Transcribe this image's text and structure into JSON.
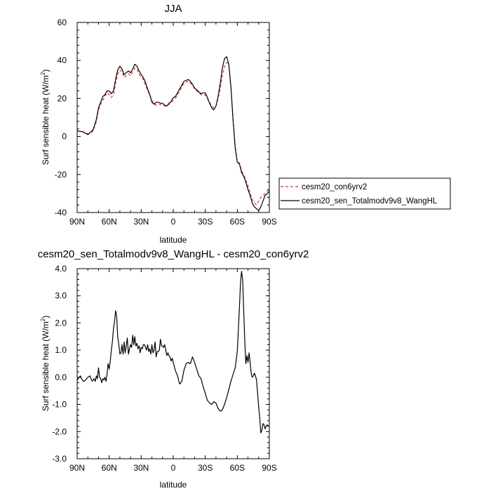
{
  "chart_data": [
    {
      "type": "line",
      "title": "JJA",
      "xlabel": "latitude",
      "ylabel": "Surf sensible heat (W/m",
      "ylabel_sup": "2",
      "ylabel_close": ")",
      "xlim": [
        90,
        -90
      ],
      "ylim": [
        -40,
        60
      ],
      "xticks": [
        90,
        60,
        30,
        0,
        -30,
        -60,
        -90
      ],
      "xtick_labels": [
        "90N",
        "60N",
        "30N",
        "0",
        "30S",
        "60S",
        "90S"
      ],
      "yticks": [
        -40,
        -20,
        0,
        20,
        40,
        60
      ],
      "ytick_labels": [
        "-40",
        "-20",
        "0",
        "20",
        "40",
        "60"
      ],
      "legend_position": "right",
      "x": [
        90,
        85,
        80,
        77,
        75,
        72,
        70,
        68,
        66,
        64,
        62,
        60,
        58,
        56,
        54,
        52,
        50,
        48,
        46,
        44,
        42,
        40,
        38,
        36,
        34,
        32,
        30,
        28,
        26,
        24,
        22,
        20,
        18,
        16,
        14,
        12,
        10,
        8,
        6,
        4,
        2,
        0,
        -2,
        -4,
        -6,
        -8,
        -10,
        -12,
        -14,
        -16,
        -18,
        -20,
        -22,
        -24,
        -26,
        -28,
        -30,
        -32,
        -34,
        -36,
        -38,
        -40,
        -42,
        -44,
        -46,
        -48,
        -50,
        -52,
        -54,
        -56,
        -58,
        -60,
        -62,
        -64,
        -66,
        -68,
        -70,
        -72,
        -74,
        -76,
        -78,
        -80,
        -82,
        -84,
        -86,
        -88,
        -90
      ],
      "series": [
        {
          "name": "cesm20_con6yrv2",
          "color": "#e8302f",
          "dash": "dashed",
          "values": [
            3,
            2.5,
            1.5,
            2,
            3,
            8,
            14,
            17,
            19,
            21,
            23,
            22,
            20.5,
            22,
            28,
            33,
            35,
            34,
            31,
            32,
            33,
            32,
            34,
            36,
            35.5,
            33,
            31,
            30,
            27,
            24,
            22,
            19,
            17,
            16.5,
            16.5,
            17,
            16.5,
            16,
            16,
            17,
            17.5,
            19,
            20,
            22,
            24,
            26,
            28,
            28.5,
            29,
            28,
            27,
            25,
            24,
            23,
            22,
            22,
            22,
            20,
            18,
            16,
            15,
            16,
            20,
            25,
            32,
            37,
            39,
            38,
            26,
            10,
            -5,
            -13,
            -14,
            -18,
            -20,
            -23,
            -26,
            -30,
            -33,
            -35,
            -36,
            -34,
            -32,
            -31,
            -30,
            -29,
            -28
          ]
        },
        {
          "name": "cesm20_sen_Totalmodv9v8_WangHL",
          "color": "#000000",
          "dash": "solid",
          "values": [
            3,
            2.5,
            1,
            2.5,
            3.5,
            9,
            15,
            18,
            21,
            22,
            24,
            24,
            22.5,
            24,
            30,
            35,
            37,
            35.5,
            32.5,
            33.5,
            34.5,
            33.5,
            35.5,
            38,
            37,
            34.5,
            32.5,
            31,
            28.5,
            25,
            22,
            18,
            17,
            18,
            18,
            17.5,
            17.5,
            16.5,
            16,
            17.5,
            18.5,
            20.5,
            21,
            23,
            25,
            27,
            29,
            29.5,
            30,
            29,
            27.5,
            25.5,
            24.5,
            23.5,
            22.5,
            23,
            23,
            20.5,
            17.5,
            15,
            14,
            16,
            21,
            28,
            36,
            41,
            42,
            38,
            26,
            9,
            -6,
            -13.5,
            -14.5,
            -19,
            -21,
            -24,
            -28,
            -31,
            -35,
            -37,
            -38,
            -39,
            -37,
            -34,
            -31,
            -30,
            -29
          ]
        }
      ]
    },
    {
      "type": "line",
      "title": "cesm20_sen_Totalmodv9v8_WangHL - cesm20_con6yrv2",
      "xlabel": "latitude",
      "ylabel": "Surf sensible heat (W/m",
      "ylabel_sup": "2",
      "ylabel_close": ")",
      "xlim": [
        90,
        -90
      ],
      "ylim": [
        -3,
        4
      ],
      "xticks": [
        90,
        60,
        30,
        0,
        -30,
        -60,
        -90
      ],
      "xtick_labels": [
        "90N",
        "60N",
        "30N",
        "0",
        "30S",
        "60S",
        "90S"
      ],
      "yticks": [
        -3,
        -2,
        -1,
        0,
        1,
        2,
        3,
        4
      ],
      "ytick_labels": [
        "-3.0",
        "-2.0",
        "-1.0",
        "0.0",
        "1.0",
        "2.0",
        "3.0",
        "4.0"
      ],
      "x": [
        90,
        88,
        87,
        86,
        84,
        82,
        80,
        78,
        77,
        76,
        75,
        74,
        73,
        72,
        71,
        70,
        69,
        68,
        67,
        66,
        65,
        64,
        63,
        62,
        61,
        60,
        59,
        58,
        57,
        56,
        55,
        54,
        53,
        52,
        51,
        50,
        49,
        48,
        47,
        46,
        45,
        44,
        43,
        42,
        41,
        40,
        39,
        38,
        37,
        36,
        35,
        34,
        33,
        32,
        31,
        30,
        29,
        28,
        27,
        26,
        25,
        24,
        23,
        22,
        21,
        20,
        19,
        18,
        17,
        16,
        15,
        14,
        13,
        12,
        11,
        10,
        9,
        8,
        7,
        6,
        5,
        4,
        3,
        2,
        1,
        0,
        -2,
        -4,
        -6,
        -8,
        -10,
        -12,
        -14,
        -16,
        -18,
        -20,
        -22,
        -24,
        -26,
        -28,
        -30,
        -32,
        -34,
        -36,
        -38,
        -40,
        -42,
        -44,
        -46,
        -48,
        -50,
        -52,
        -54,
        -56,
        -58,
        -60,
        -61,
        -62,
        -63,
        -64,
        -65,
        -66,
        -67,
        -68,
        -69,
        -70,
        -71,
        -72,
        -73,
        -74,
        -75,
        -76,
        -77,
        -78,
        -79,
        -80,
        -81,
        -82,
        -83,
        -84,
        -85,
        -86,
        -87,
        -88,
        -89,
        -90
      ],
      "series": [
        {
          "name": "",
          "color": "#000000",
          "dash": "solid",
          "values": [
            -0.1,
            0,
            0.05,
            -0.05,
            -0.15,
            -0.1,
            0,
            0.05,
            -0.05,
            -0.15,
            -0.1,
            -0.05,
            -0.15,
            0.05,
            -0.05,
            0.35,
            0,
            -0.05,
            -0.2,
            -0.05,
            -0.1,
            0,
            -0.15,
            0.1,
            0.5,
            0.3,
            0.6,
            1.0,
            1.3,
            1.8,
            2.05,
            2.45,
            2.25,
            1.5,
            1.2,
            0.85,
            0.9,
            1.2,
            0.85,
            1.3,
            0.9,
            1.15,
            1.45,
            0.85,
            1.05,
            1.2,
            1.1,
            1.55,
            1.2,
            1.5,
            1.15,
            1.25,
            1.05,
            1.15,
            0.9,
            1.1,
            1.05,
            1.2,
            1.2,
            1.1,
            1.0,
            1.2,
            0.95,
            1.05,
            0.85,
            1.2,
            0.9,
            1.0,
            1.3,
            0.75,
            0.95,
            0.95,
            1.0,
            1.4,
            1.15,
            1.15,
            1.1,
            1.2,
            1.0,
            0.8,
            0.9,
            0.8,
            0.75,
            0.6,
            0.7,
            0.55,
            0.25,
            0.05,
            -0.25,
            -0.15,
            0.25,
            0.5,
            0.55,
            0.5,
            0.75,
            0.55,
            0.3,
            0.05,
            -0.05,
            -0.35,
            -0.6,
            -0.85,
            -0.95,
            -1.0,
            -0.9,
            -0.95,
            -1.15,
            -1.25,
            -1.2,
            -1.0,
            -0.75,
            -0.45,
            -0.15,
            0.1,
            0.35,
            0.95,
            1.8,
            2.6,
            3.5,
            3.9,
            3.6,
            2.4,
            1.3,
            0.5,
            0.8,
            0.55,
            0.9,
            0.55,
            0.15,
            0.0,
            0.05,
            0.15,
            0.05,
            -0.1,
            -0.6,
            -1.1,
            -1.5,
            -2.05,
            -1.95,
            -1.7,
            -1.75,
            -1.9,
            -1.8,
            -1.75,
            -1.8,
            -1.8
          ]
        }
      ]
    }
  ]
}
